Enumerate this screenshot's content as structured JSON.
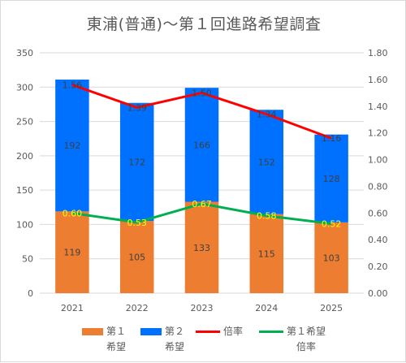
{
  "chart_data": {
    "type": "bar",
    "title": "東浦(普通)〜第１回進路希望調査",
    "categories": [
      "2021",
      "2022",
      "2023",
      "2024",
      "2025"
    ],
    "series": [
      {
        "name": "第１希望",
        "type": "bar",
        "axis": "left",
        "color": "#ed7d31",
        "values": [
          119,
          105,
          133,
          115,
          103
        ]
      },
      {
        "name": "第２希望",
        "type": "bar",
        "axis": "left",
        "color": "#0070ff",
        "values": [
          192,
          172,
          166,
          152,
          128
        ]
      },
      {
        "name": "倍率",
        "type": "line",
        "axis": "right",
        "color": "#ff0000",
        "values": [
          1.56,
          1.39,
          1.5,
          1.34,
          1.16
        ],
        "labels": [
          "1.56",
          "1.39",
          "1.50",
          "1.34",
          "1.16"
        ]
      },
      {
        "name": "第１希望倍率",
        "type": "line",
        "axis": "right",
        "color": "#00b050",
        "values": [
          0.6,
          0.53,
          0.67,
          0.58,
          0.52
        ],
        "labels": [
          "0.60",
          "0.53",
          "0.67",
          "0.58",
          "0.52"
        ]
      }
    ],
    "ylim_left": [
      0,
      350
    ],
    "yticks_left": [
      "0",
      "50",
      "100",
      "150",
      "200",
      "250",
      "300",
      "350"
    ],
    "ylim_right": [
      0,
      1.8
    ],
    "yticks_right": [
      "0.00",
      "0.20",
      "0.40",
      "0.60",
      "0.80",
      "1.00",
      "1.20",
      "1.40",
      "1.60",
      "1.80"
    ],
    "stacked": true,
    "grid": true,
    "legend": "bottom",
    "legend_labels": [
      "第１\n希望",
      "第２\n希望",
      "倍率",
      "第１希望\n倍率"
    ]
  }
}
